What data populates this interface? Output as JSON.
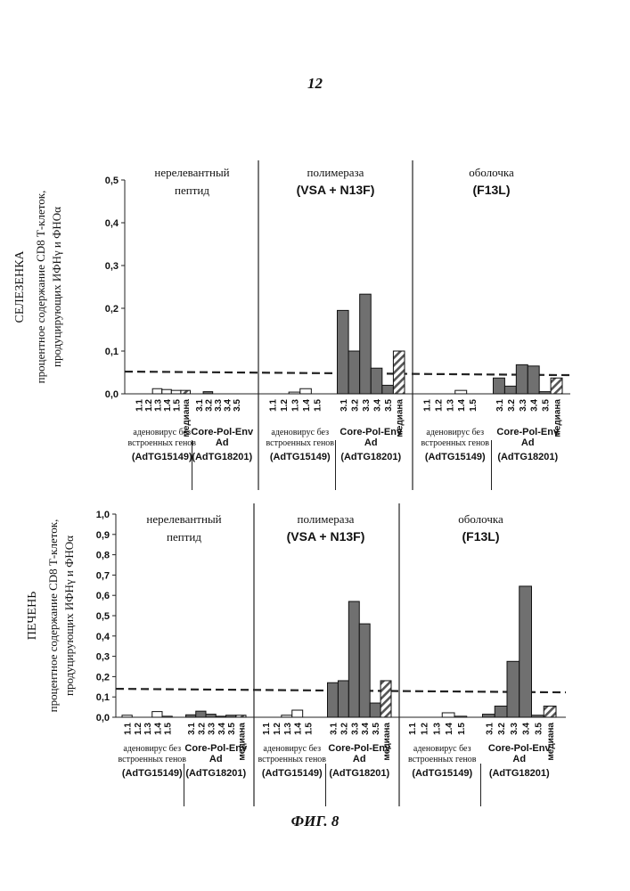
{
  "page_number": "12",
  "figure_caption": "ФИГ. 8",
  "colors": {
    "group1_bar": "#ffffff",
    "group2_bar": "#707070",
    "median_hatch": "#555555",
    "threshold_line": "#222222"
  },
  "chart_data": [
    {
      "type": "bar",
      "organ_label": "СЕЛЕЗЕНКА",
      "ylabel_lines": [
        "процентное содержание CD8 Т-клеток,",
        "продуцирующих ИФНγ и ФНОα"
      ],
      "ylim": [
        0,
        0.5
      ],
      "yticks": [
        "0,0",
        "0,1",
        "0,2",
        "0,3",
        "0,4",
        "0,5"
      ],
      "threshold": 0.052,
      "grid": false,
      "panels": [
        {
          "title_lines": [
            "нерелевантный",
            "пептид"
          ],
          "title_bold": false,
          "groups": [
            {
              "categories": [
                "1.1",
                "1.2",
                "1.3",
                "1.4",
                "1.5",
                "медиана"
              ],
              "values": [
                0.0,
                0.0,
                0.012,
                0.01,
                0.008,
                0.008
              ]
            },
            {
              "categories": [
                "3.1",
                "3.2",
                "3.3",
                "3.4",
                "3.5"
              ],
              "values": [
                0.0,
                0.005,
                0.0,
                0.0,
                0.0
              ]
            }
          ]
        },
        {
          "title_lines": [
            "полимераза",
            "(VSA + N13F)"
          ],
          "title_bold": true,
          "groups": [
            {
              "categories": [
                "1.1",
                "1.2",
                "1.3",
                "1.4",
                "1.5"
              ],
              "values": [
                0.0,
                0.0,
                0.004,
                0.012,
                0.0
              ]
            },
            {
              "categories": [
                "3.1",
                "3.2",
                "3.3",
                "3.4",
                "3.5",
                "медиана"
              ],
              "values": [
                0.195,
                0.1,
                0.233,
                0.06,
                0.02,
                0.1
              ]
            }
          ]
        },
        {
          "title_lines": [
            "оболочка",
            "(F13L)"
          ],
          "title_bold": true,
          "groups": [
            {
              "categories": [
                "1.1",
                "1.2",
                "1.3",
                "1.4",
                "1.5"
              ],
              "values": [
                0.0,
                0.0,
                0.0,
                0.008,
                0.0
              ]
            },
            {
              "categories": [
                "3.1",
                "3.2",
                "3.3",
                "3.4",
                "3.5",
                "медиана"
              ],
              "values": [
                0.037,
                0.018,
                0.068,
                0.065,
                0.005,
                0.037
              ]
            }
          ]
        }
      ],
      "group_labels": [
        {
          "lines": [
            "аденовирус без",
            "встроенных генов"
          ],
          "id": "(AdTG15149)"
        },
        {
          "lines": [
            "Core-Pol-Env",
            "Ad"
          ],
          "id": "(AdTG18201)"
        }
      ]
    },
    {
      "type": "bar",
      "organ_label": "ПЕЧЕНЬ",
      "ylabel_lines": [
        "процентное содержание CD8 Т-клеток,",
        "продуцирующих ИФНγ и ФНОα"
      ],
      "ylim": [
        0,
        1.0
      ],
      "yticks": [
        "0,0",
        "0,1",
        "0,2",
        "0,3",
        "0,4",
        "0,5",
        "0,6",
        "0,7",
        "0,8",
        "0,9",
        "1,0"
      ],
      "threshold": 0.14,
      "grid": false,
      "panels": [
        {
          "title_lines": [
            "нерелевантный",
            "пептид"
          ],
          "title_bold": false,
          "groups": [
            {
              "categories": [
                "1.1",
                "1.2",
                "1.3",
                "1.4",
                "1.5"
              ],
              "values": [
                0.01,
                0.0,
                0.0,
                0.028,
                0.005
              ]
            },
            {
              "categories": [
                "3.1",
                "3.2",
                "3.3",
                "3.4",
                "3.5",
                "медиана"
              ],
              "values": [
                0.012,
                0.03,
                0.015,
                0.005,
                0.01,
                0.01
              ]
            }
          ]
        },
        {
          "title_lines": [
            "полимераза",
            "(VSA + N13F)"
          ],
          "title_bold": true,
          "groups": [
            {
              "categories": [
                "1.1",
                "1.2",
                "1.3",
                "1.4",
                "1.5"
              ],
              "values": [
                0.0,
                0.0,
                0.01,
                0.035,
                0.0
              ]
            },
            {
              "categories": [
                "3.1",
                "3.2",
                "3.3",
                "3.4",
                "3.5",
                "медиана"
              ],
              "values": [
                0.17,
                0.18,
                0.57,
                0.46,
                0.07,
                0.18
              ]
            }
          ]
        },
        {
          "title_lines": [
            "оболочка",
            "(F13L)"
          ],
          "title_bold": true,
          "groups": [
            {
              "categories": [
                "1.1",
                "1.2",
                "1.3",
                "1.4",
                "1.5"
              ],
              "values": [
                0.0,
                0.0,
                0.0,
                0.022,
                0.005
              ]
            },
            {
              "categories": [
                "3.1",
                "3.2",
                "3.3",
                "3.4",
                "3.5",
                "медиана"
              ],
              "values": [
                0.015,
                0.055,
                0.275,
                0.645,
                0.01,
                0.055
              ]
            }
          ]
        }
      ],
      "group_labels": [
        {
          "lines": [
            "аденовирус без",
            "встроенных генов"
          ],
          "id": "(AdTG15149)"
        },
        {
          "lines": [
            "Core-Pol-Env",
            "Ad"
          ],
          "id": "(AdTG18201)"
        }
      ]
    }
  ]
}
